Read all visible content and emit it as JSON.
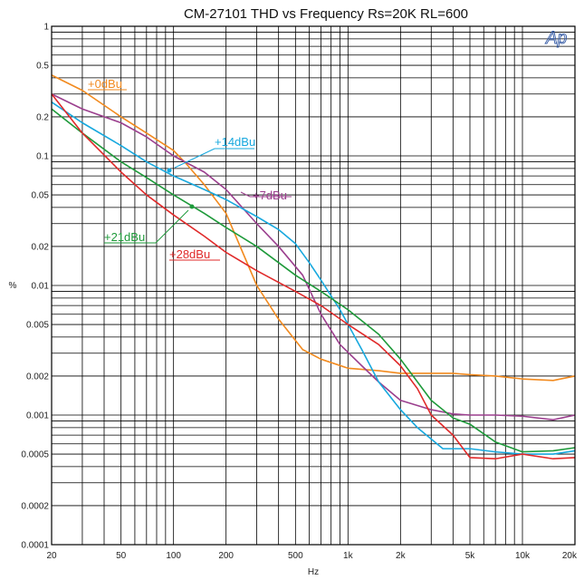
{
  "chart_data": {
    "type": "line",
    "title": "CM-27101   THD vs Frequency  Rs=20K   RL=600",
    "xlabel": "Hz",
    "ylabel": "%",
    "x_scale": "log",
    "y_scale": "log",
    "xlim": [
      20,
      20000
    ],
    "ylim": [
      0.0001,
      1
    ],
    "grid": true,
    "logo": "Ap",
    "x_ticks": [
      {
        "value": 20,
        "label": "20"
      },
      {
        "value": 50,
        "label": "50"
      },
      {
        "value": 100,
        "label": "100"
      },
      {
        "value": 200,
        "label": "200"
      },
      {
        "value": 500,
        "label": "500"
      },
      {
        "value": 1000,
        "label": "1k"
      },
      {
        "value": 2000,
        "label": "2k"
      },
      {
        "value": 5000,
        "label": "5k"
      },
      {
        "value": 10000,
        "label": "10k"
      },
      {
        "value": 20000,
        "label": "20k"
      }
    ],
    "y_ticks": [
      {
        "value": 1,
        "label": "1"
      },
      {
        "value": 0.5,
        "label": "0.5"
      },
      {
        "value": 0.2,
        "label": "0.2"
      },
      {
        "value": 0.1,
        "label": "0.1"
      },
      {
        "value": 0.05,
        "label": "0.05"
      },
      {
        "value": 0.02,
        "label": "0.02"
      },
      {
        "value": 0.01,
        "label": "0.01"
      },
      {
        "value": 0.005,
        "label": "0.005"
      },
      {
        "value": 0.002,
        "label": "0.002"
      },
      {
        "value": 0.001,
        "label": "0.001"
      },
      {
        "value": 0.0005,
        "label": "0.0005"
      },
      {
        "value": 0.0002,
        "label": "0.0002"
      },
      {
        "value": 0.0001,
        "label": "0.0001"
      }
    ],
    "series": [
      {
        "name": "+0dBu",
        "color": "#f28a1e",
        "points": [
          [
            20,
            0.42
          ],
          [
            30,
            0.32
          ],
          [
            50,
            0.2
          ],
          [
            70,
            0.15
          ],
          [
            100,
            0.11
          ],
          [
            120,
            0.085
          ],
          [
            150,
            0.06
          ],
          [
            200,
            0.036
          ],
          [
            300,
            0.01
          ],
          [
            400,
            0.0055
          ],
          [
            550,
            0.0032
          ],
          [
            700,
            0.0027
          ],
          [
            1000,
            0.0023
          ],
          [
            1500,
            0.0022
          ],
          [
            2000,
            0.0021
          ],
          [
            3000,
            0.0021
          ],
          [
            4000,
            0.0021
          ],
          [
            5000,
            0.00205
          ],
          [
            7000,
            0.002
          ],
          [
            10000,
            0.0019
          ],
          [
            15000,
            0.00185
          ],
          [
            20000,
            0.002
          ]
        ]
      },
      {
        "name": "+7dBu",
        "color": "#9b3f8e",
        "points": [
          [
            20,
            0.3
          ],
          [
            30,
            0.23
          ],
          [
            50,
            0.18
          ],
          [
            70,
            0.14
          ],
          [
            100,
            0.1
          ],
          [
            150,
            0.075
          ],
          [
            200,
            0.055
          ],
          [
            300,
            0.03
          ],
          [
            400,
            0.02
          ],
          [
            550,
            0.012
          ],
          [
            700,
            0.006
          ],
          [
            900,
            0.0035
          ],
          [
            1200,
            0.0024
          ],
          [
            1500,
            0.0018
          ],
          [
            2000,
            0.0013
          ],
          [
            3000,
            0.0011
          ],
          [
            4000,
            0.00102
          ],
          [
            5000,
            0.001
          ],
          [
            7000,
            0.001
          ],
          [
            10000,
            0.00098
          ],
          [
            15000,
            0.00092
          ],
          [
            20000,
            0.001
          ]
        ]
      },
      {
        "name": "+14dBu",
        "color": "#17a8de",
        "points": [
          [
            20,
            0.26
          ],
          [
            30,
            0.18
          ],
          [
            50,
            0.12
          ],
          [
            70,
            0.09
          ],
          [
            100,
            0.07
          ],
          [
            150,
            0.055
          ],
          [
            200,
            0.046
          ],
          [
            300,
            0.034
          ],
          [
            400,
            0.027
          ],
          [
            500,
            0.021
          ],
          [
            600,
            0.015
          ],
          [
            700,
            0.011
          ],
          [
            900,
            0.0065
          ],
          [
            1200,
            0.0032
          ],
          [
            1500,
            0.0018
          ],
          [
            2000,
            0.0011
          ],
          [
            2500,
            0.0008
          ],
          [
            3500,
            0.00055
          ],
          [
            4500,
            0.00055
          ],
          [
            5000,
            0.00055
          ],
          [
            7000,
            0.00052
          ],
          [
            10000,
            0.0005
          ],
          [
            15000,
            0.0005
          ],
          [
            20000,
            0.00053
          ]
        ]
      },
      {
        "name": "+21dBu",
        "color": "#1e9a3a",
        "points": [
          [
            20,
            0.23
          ],
          [
            30,
            0.15
          ],
          [
            50,
            0.09
          ],
          [
            70,
            0.068
          ],
          [
            100,
            0.05
          ],
          [
            150,
            0.036
          ],
          [
            200,
            0.028
          ],
          [
            300,
            0.02
          ],
          [
            400,
            0.015
          ],
          [
            500,
            0.012
          ],
          [
            700,
            0.009
          ],
          [
            1000,
            0.0065
          ],
          [
            1500,
            0.0042
          ],
          [
            2000,
            0.0027
          ],
          [
            3000,
            0.0013
          ],
          [
            4000,
            0.00095
          ],
          [
            5000,
            0.00085
          ],
          [
            7000,
            0.00062
          ],
          [
            10000,
            0.00052
          ],
          [
            15000,
            0.00053
          ],
          [
            20000,
            0.00056
          ]
        ]
      },
      {
        "name": "+28dBu",
        "color": "#e02a2a",
        "points": [
          [
            20,
            0.3
          ],
          [
            30,
            0.15
          ],
          [
            50,
            0.075
          ],
          [
            70,
            0.05
          ],
          [
            100,
            0.035
          ],
          [
            150,
            0.024
          ],
          [
            200,
            0.018
          ],
          [
            300,
            0.013
          ],
          [
            500,
            0.009
          ],
          [
            700,
            0.007
          ],
          [
            1000,
            0.005
          ],
          [
            1500,
            0.0035
          ],
          [
            2000,
            0.0024
          ],
          [
            2500,
            0.0016
          ],
          [
            3000,
            0.001
          ],
          [
            4000,
            0.0007
          ],
          [
            5000,
            0.00047
          ],
          [
            7000,
            0.00046
          ],
          [
            10000,
            0.0005
          ],
          [
            15000,
            0.00046
          ],
          [
            20000,
            0.00047
          ]
        ]
      }
    ],
    "annotations": [
      {
        "series": "+0dBu",
        "text": "+0dBu"
      },
      {
        "series": "+14dBu",
        "text": "+14dBu"
      },
      {
        "series": "+7dBu",
        "text": "+7dBu"
      },
      {
        "series": "+21dBu",
        "text": "+21dBu"
      },
      {
        "series": "+28dBu",
        "text": "+28dBu"
      }
    ]
  }
}
